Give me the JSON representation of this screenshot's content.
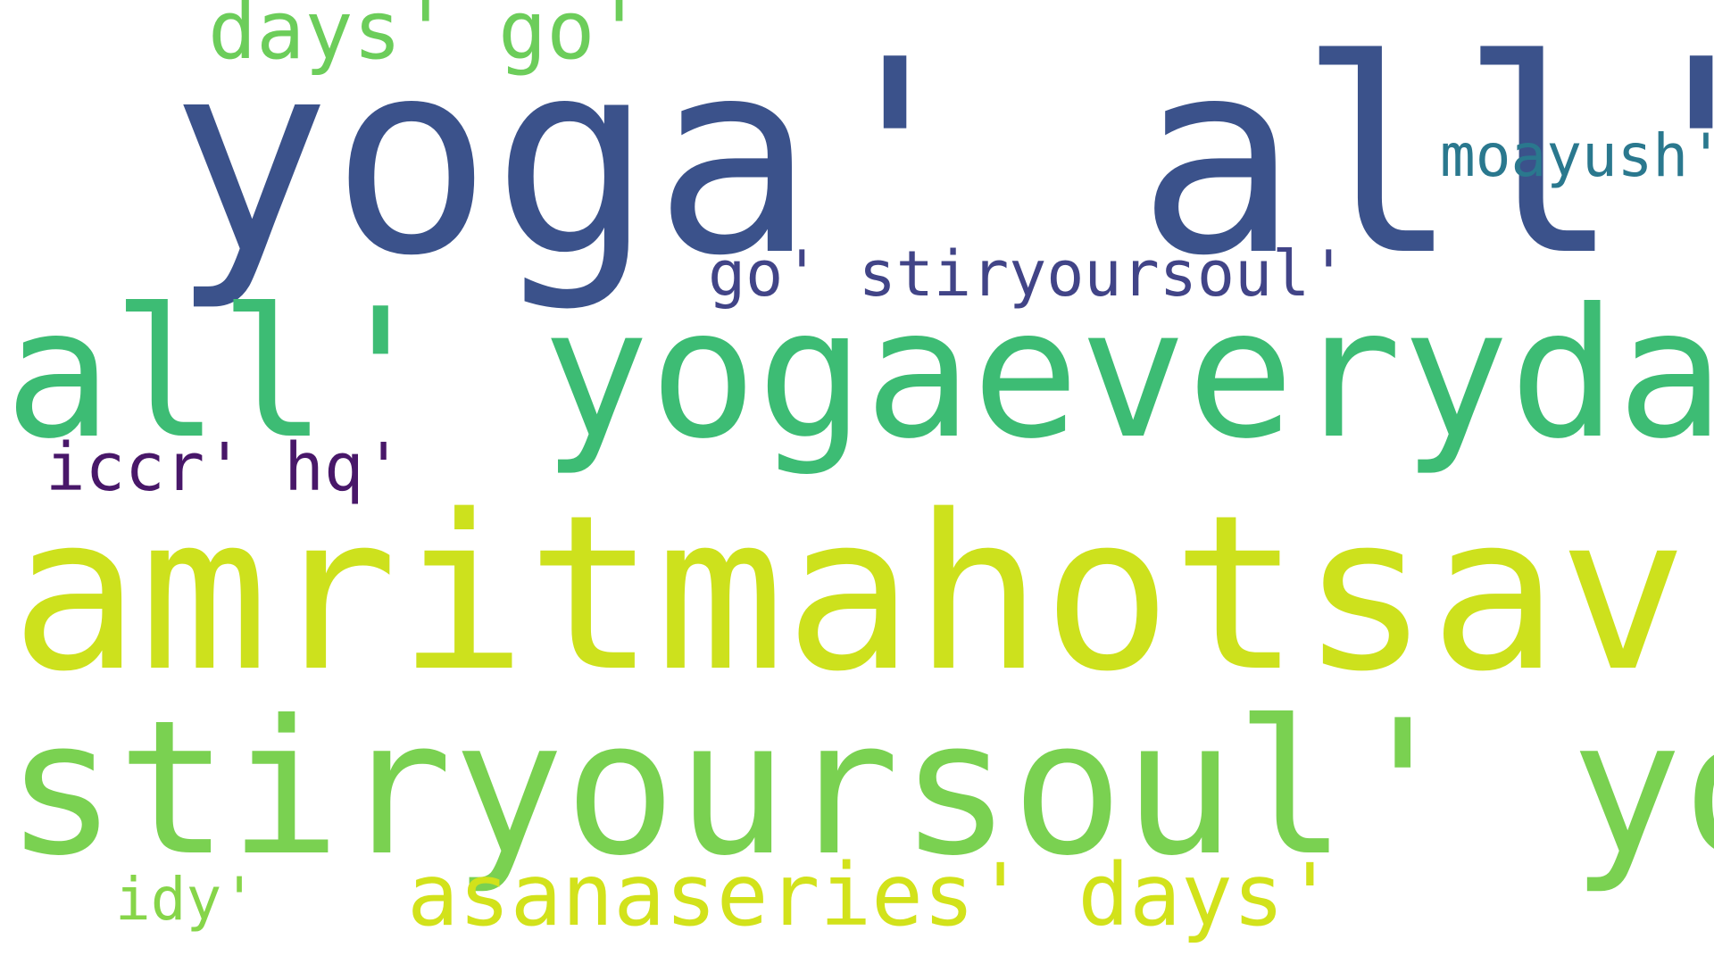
{
  "cloud": {
    "words": [
      {
        "id": "w-yoga-all",
        "text": "yoga' all'",
        "color": "#3b528b"
      },
      {
        "id": "w-days-go",
        "text": "days' go'",
        "color": "#6ccd5a"
      },
      {
        "id": "w-moayush",
        "text": "moayush'",
        "color": "#2a788e"
      },
      {
        "id": "w-go-stir",
        "text": "go' stiryoursoul'",
        "color": "#414487"
      },
      {
        "id": "w-all-yogaevery",
        "text": "all' yogaeveryday'",
        "color": "#3dbc74"
      },
      {
        "id": "w-iccr-hq",
        "text": "iccr' hq'",
        "color": "#481769"
      },
      {
        "id": "w-amrit",
        "text": "amritmahotsav'",
        "color": "#cde11d"
      },
      {
        "id": "w-stiryoursoul",
        "text": "stiryoursoul' yoga'",
        "color": "#7ad151"
      },
      {
        "id": "w-idy",
        "text": "idy'",
        "color": "#86d549"
      },
      {
        "id": "w-asana",
        "text": "asanaseries' days'",
        "color": "#d2e21b"
      }
    ]
  }
}
